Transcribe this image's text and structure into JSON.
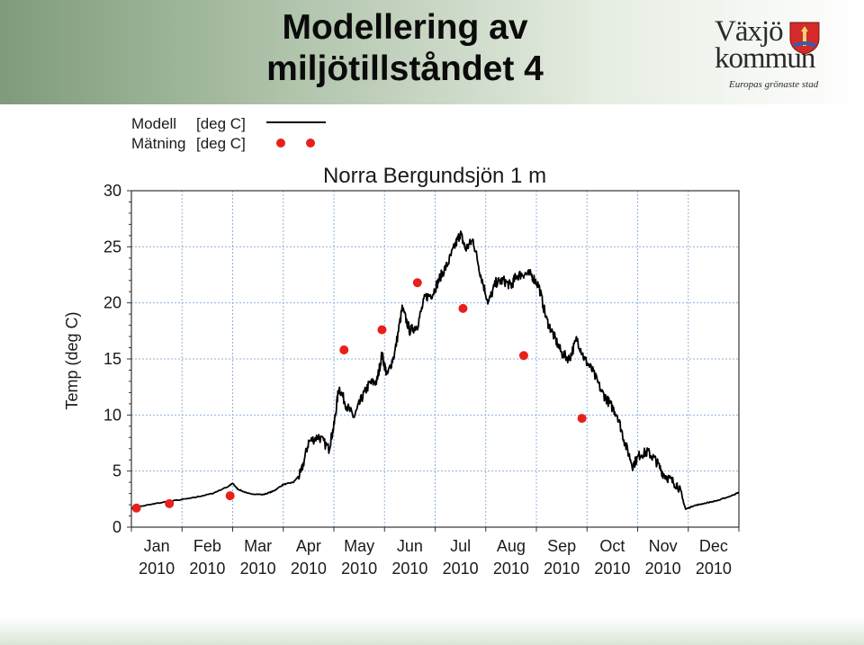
{
  "slide": {
    "title_line1": "Modellering av",
    "title_line2": "miljötillståndet 4"
  },
  "logo": {
    "name_line1": "Växjö",
    "name_line2": "kommun",
    "tagline": "Europas grönaste stad",
    "icon": "vaxjo-coat-of-arms-icon"
  },
  "colors": {
    "model_line": "#000000",
    "measurement": "#e8201c",
    "grid": "#8fb3d9",
    "header_band": "#7f9b7a"
  },
  "chart_data": {
    "type": "line",
    "title": "Norra Bergundsjön 1 m",
    "ylabel": "Temp (deg C)",
    "xlabel": "",
    "ylim": [
      0,
      30
    ],
    "xlim": [
      0,
      12
    ],
    "grid": true,
    "legend_position": "top-left, above plot",
    "yticks": [
      "0",
      "5",
      "10",
      "15",
      "20",
      "25",
      "30"
    ],
    "xticks": [
      {
        "month": "Jan",
        "year": "2010"
      },
      {
        "month": "Feb",
        "year": "2010"
      },
      {
        "month": "Mar",
        "year": "2010"
      },
      {
        "month": "Apr",
        "year": "2010"
      },
      {
        "month": "May",
        "year": "2010"
      },
      {
        "month": "Jun",
        "year": "2010"
      },
      {
        "month": "Jul",
        "year": "2010"
      },
      {
        "month": "Aug",
        "year": "2010"
      },
      {
        "month": "Sep",
        "year": "2010"
      },
      {
        "month": "Oct",
        "year": "2010"
      },
      {
        "month": "Nov",
        "year": "2010"
      },
      {
        "month": "Dec",
        "year": "2010"
      }
    ],
    "series": [
      {
        "name": "Modell",
        "unit": "[deg C]",
        "style": "line",
        "points": [
          [
            0.0,
            1.7
          ],
          [
            0.6,
            2.2
          ],
          [
            1.2,
            2.6
          ],
          [
            1.6,
            3.0
          ],
          [
            1.9,
            3.6
          ],
          [
            2.0,
            3.9
          ],
          [
            2.1,
            3.4
          ],
          [
            2.3,
            3.0
          ],
          [
            2.6,
            2.9
          ],
          [
            2.8,
            3.2
          ],
          [
            3.0,
            3.8
          ],
          [
            3.2,
            4.0
          ],
          [
            3.35,
            4.8
          ],
          [
            3.5,
            7.6
          ],
          [
            3.7,
            8.1
          ],
          [
            3.9,
            7.0
          ],
          [
            4.0,
            9.0
          ],
          [
            4.1,
            12.5
          ],
          [
            4.25,
            10.8
          ],
          [
            4.4,
            9.8
          ],
          [
            4.55,
            11.5
          ],
          [
            4.7,
            12.8
          ],
          [
            4.85,
            13.0
          ],
          [
            4.95,
            15.4
          ],
          [
            5.05,
            13.5
          ],
          [
            5.2,
            15.5
          ],
          [
            5.35,
            19.5
          ],
          [
            5.5,
            17.5
          ],
          [
            5.65,
            18.0
          ],
          [
            5.8,
            20.5
          ],
          [
            5.95,
            20.8
          ],
          [
            6.1,
            22.3
          ],
          [
            6.25,
            23.5
          ],
          [
            6.4,
            25.2
          ],
          [
            6.5,
            26.2
          ],
          [
            6.6,
            24.8
          ],
          [
            6.75,
            25.6
          ],
          [
            6.9,
            22.5
          ],
          [
            7.05,
            20.0
          ],
          [
            7.2,
            21.8
          ],
          [
            7.35,
            22.0
          ],
          [
            7.5,
            21.5
          ],
          [
            7.6,
            22.4
          ],
          [
            7.75,
            22.6
          ],
          [
            7.9,
            22.5
          ],
          [
            8.05,
            21.5
          ],
          [
            8.2,
            18.5
          ],
          [
            8.35,
            17.0
          ],
          [
            8.5,
            15.5
          ],
          [
            8.65,
            15.0
          ],
          [
            8.8,
            16.8
          ],
          [
            8.95,
            15.0
          ],
          [
            9.1,
            14.0
          ],
          [
            9.3,
            12.0
          ],
          [
            9.45,
            11.0
          ],
          [
            9.6,
            10.0
          ],
          [
            9.75,
            7.5
          ],
          [
            9.9,
            5.5
          ],
          [
            10.05,
            6.5
          ],
          [
            10.2,
            6.7
          ],
          [
            10.35,
            6.0
          ],
          [
            10.5,
            4.8
          ],
          [
            10.65,
            4.2
          ],
          [
            10.8,
            3.7
          ],
          [
            10.95,
            1.6
          ],
          [
            11.1,
            1.9
          ],
          [
            11.3,
            2.1
          ],
          [
            11.6,
            2.4
          ],
          [
            11.85,
            2.8
          ],
          [
            12.0,
            3.1
          ]
        ]
      },
      {
        "name": "Mätning",
        "unit": "[deg C]",
        "style": "markers",
        "points": [
          [
            0.1,
            1.7
          ],
          [
            0.75,
            2.1
          ],
          [
            1.95,
            2.8
          ],
          [
            4.2,
            15.8
          ],
          [
            4.95,
            17.6
          ],
          [
            5.65,
            21.8
          ],
          [
            6.55,
            19.5
          ],
          [
            7.75,
            15.3
          ],
          [
            8.9,
            9.7
          ]
        ]
      }
    ]
  }
}
